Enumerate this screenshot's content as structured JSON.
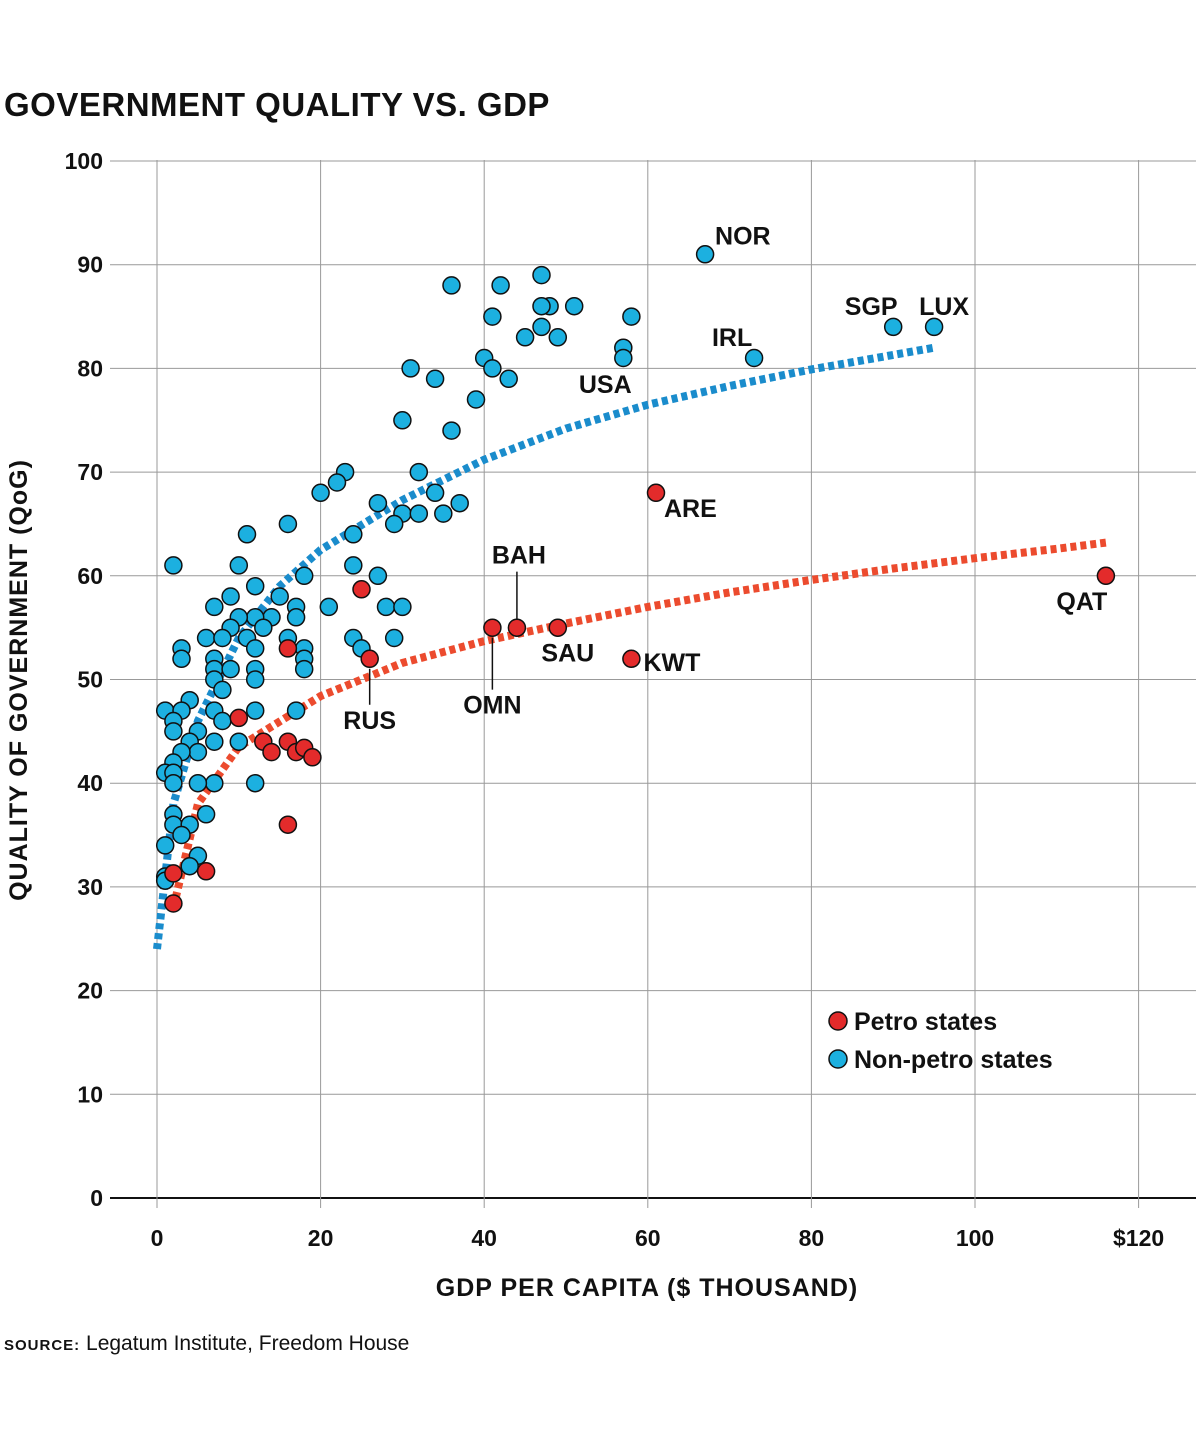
{
  "chart_data": {
    "type": "scatter",
    "title": "GOVERNMENT QUALITY VS. GDP",
    "xlabel": "GDP PER CAPITA ($ THOUSAND)",
    "ylabel": "QUALITY OF GOVERNMENT (QoG)",
    "xlim": [
      0,
      125
    ],
    "ylim": [
      0,
      100
    ],
    "x_ticks": [
      "0",
      "20",
      "40",
      "60",
      "80",
      "100",
      "$120"
    ],
    "y_ticks": [
      "0",
      "10",
      "20",
      "30",
      "40",
      "50",
      "60",
      "70",
      "80",
      "90",
      "100"
    ],
    "grid": true,
    "legend_position": "bottom-right",
    "series": [
      {
        "name": "Petro states",
        "color": "#e32b2b",
        "points": [
          [
            61,
            68
          ],
          [
            116,
            60
          ],
          [
            41,
            55
          ],
          [
            44,
            55
          ],
          [
            49,
            55
          ],
          [
            58,
            52
          ],
          [
            26,
            52
          ],
          [
            25,
            58.7
          ],
          [
            16,
            53
          ],
          [
            10,
            46.3
          ],
          [
            13,
            44
          ],
          [
            14,
            43
          ],
          [
            16,
            44
          ],
          [
            17,
            43
          ],
          [
            18,
            43.4
          ],
          [
            19,
            42.5
          ],
          [
            16,
            36
          ],
          [
            6,
            31.5
          ],
          [
            2,
            31.3
          ],
          [
            2,
            28.4
          ]
        ],
        "labels": [
          {
            "text": "ARE",
            "x": 61,
            "y": 68
          },
          {
            "text": "QAT",
            "x": 116,
            "y": 60
          },
          {
            "text": "BAH",
            "x": 44,
            "y": 55
          },
          {
            "text": "SAU",
            "x": 49,
            "y": 55
          },
          {
            "text": "OMN",
            "x": 41,
            "y": 55
          },
          {
            "text": "KWT",
            "x": 58,
            "y": 52
          },
          {
            "text": "RUS",
            "x": 26,
            "y": 52
          }
        ],
        "trend": [
          [
            2,
            28
          ],
          [
            5,
            38
          ],
          [
            10,
            43.5
          ],
          [
            20,
            48.4
          ],
          [
            30,
            51.6
          ],
          [
            40,
            53.7
          ],
          [
            50,
            55.4
          ],
          [
            60,
            57
          ],
          [
            70,
            58.4
          ],
          [
            80,
            59.6
          ],
          [
            90,
            60.7
          ],
          [
            100,
            61.7
          ],
          [
            110,
            62.6
          ],
          [
            116,
            63.2
          ]
        ]
      },
      {
        "name": "Non-petro states",
        "color": "#1cb0e0",
        "points": [
          [
            67,
            91
          ],
          [
            90,
            84
          ],
          [
            95,
            84
          ],
          [
            73,
            81
          ],
          [
            57,
            82
          ],
          [
            57,
            81
          ],
          [
            58,
            85
          ],
          [
            47,
            89
          ],
          [
            42,
            88
          ],
          [
            36,
            88
          ],
          [
            48,
            86
          ],
          [
            51,
            86
          ],
          [
            41,
            85
          ],
          [
            47,
            86
          ],
          [
            47,
            84
          ],
          [
            49,
            83
          ],
          [
            45,
            83
          ],
          [
            40,
            81
          ],
          [
            41,
            80
          ],
          [
            43,
            79
          ],
          [
            31,
            80
          ],
          [
            34,
            79
          ],
          [
            39,
            77
          ],
          [
            30,
            75
          ],
          [
            36,
            74
          ],
          [
            32,
            70
          ],
          [
            23,
            70
          ],
          [
            22,
            69
          ],
          [
            20,
            68
          ],
          [
            34,
            68
          ],
          [
            27,
            67
          ],
          [
            30,
            66
          ],
          [
            32,
            66
          ],
          [
            35,
            66
          ],
          [
            37,
            67
          ],
          [
            29,
            65
          ],
          [
            24,
            64
          ],
          [
            16,
            65
          ],
          [
            11,
            64
          ],
          [
            2,
            61
          ],
          [
            10,
            61
          ],
          [
            24,
            61
          ],
          [
            27,
            60
          ],
          [
            18,
            60
          ],
          [
            12,
            59
          ],
          [
            15,
            58
          ],
          [
            9,
            58
          ],
          [
            7,
            57
          ],
          [
            21,
            57
          ],
          [
            28,
            57
          ],
          [
            30,
            57
          ],
          [
            17,
            57
          ],
          [
            17,
            56
          ],
          [
            14,
            56
          ],
          [
            12,
            56
          ],
          [
            10,
            56
          ],
          [
            9,
            55
          ],
          [
            13,
            55
          ],
          [
            6,
            54
          ],
          [
            11,
            54
          ],
          [
            8,
            54
          ],
          [
            16,
            54
          ],
          [
            18,
            53
          ],
          [
            29,
            54
          ],
          [
            24,
            54
          ],
          [
            25,
            53
          ],
          [
            3,
            53
          ],
          [
            12,
            53
          ],
          [
            7,
            52
          ],
          [
            18,
            52
          ],
          [
            3,
            52
          ],
          [
            12,
            51
          ],
          [
            7,
            51
          ],
          [
            9,
            51
          ],
          [
            18,
            51
          ],
          [
            12,
            50
          ],
          [
            7,
            50
          ],
          [
            8,
            49
          ],
          [
            4,
            48
          ],
          [
            1,
            47
          ],
          [
            3,
            47
          ],
          [
            7,
            47
          ],
          [
            12,
            47
          ],
          [
            17,
            47
          ],
          [
            8,
            46
          ],
          [
            2,
            46
          ],
          [
            5,
            45
          ],
          [
            2,
            45
          ],
          [
            4,
            44
          ],
          [
            7,
            44
          ],
          [
            10,
            44
          ],
          [
            5,
            43
          ],
          [
            3,
            43
          ],
          [
            2,
            42
          ],
          [
            1,
            41
          ],
          [
            2,
            41
          ],
          [
            12,
            40
          ],
          [
            7,
            40
          ],
          [
            5,
            40
          ],
          [
            2,
            40
          ],
          [
            6,
            37
          ],
          [
            2,
            37
          ],
          [
            2,
            36
          ],
          [
            4,
            36
          ],
          [
            3,
            35
          ],
          [
            1,
            34
          ],
          [
            5,
            33
          ],
          [
            4,
            32
          ],
          [
            1,
            31
          ],
          [
            1,
            30.6
          ]
        ],
        "labels": [
          {
            "text": "NOR",
            "x": 67,
            "y": 91
          },
          {
            "text": "SGP",
            "x": 90,
            "y": 84
          },
          {
            "text": "LUX",
            "x": 95,
            "y": 84
          },
          {
            "text": "IRL",
            "x": 73,
            "y": 81
          },
          {
            "text": "USA",
            "x": 57,
            "y": 81
          }
        ],
        "trend": [
          [
            0,
            24
          ],
          [
            1,
            31
          ],
          [
            2,
            38
          ],
          [
            5,
            46
          ],
          [
            10,
            54
          ],
          [
            15,
            59
          ],
          [
            20,
            62.5
          ],
          [
            30,
            67.3
          ],
          [
            40,
            71.2
          ],
          [
            50,
            74.2
          ],
          [
            60,
            76.5
          ],
          [
            70,
            78.3
          ],
          [
            80,
            79.9
          ],
          [
            95,
            82
          ]
        ]
      }
    ]
  },
  "source": {
    "label": "SOURCE:",
    "text": "Legatum Institute, Freedom House"
  }
}
